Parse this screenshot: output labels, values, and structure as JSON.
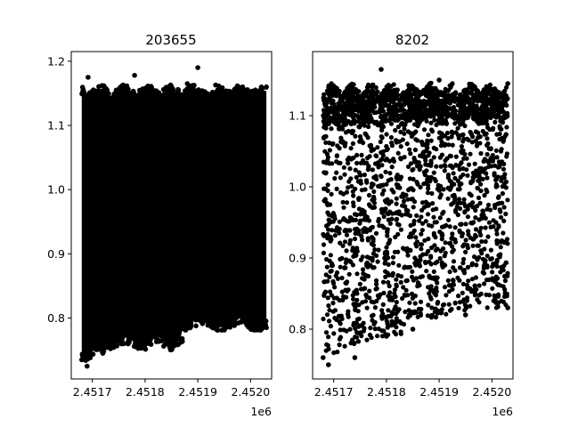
{
  "chart_data": [
    {
      "type": "scatter",
      "title": "203655",
      "xlabel": "",
      "ylabel": "",
      "x_offset_label": "1e6",
      "xlim": [
        2451660,
        2452040
      ],
      "ylim": [
        0.705,
        1.215
      ],
      "xticks": [
        2451700,
        2451800,
        2451900,
        2452000
      ],
      "xtick_labels": [
        "2.4517",
        "2.4518",
        "2.4519",
        "2.4520"
      ],
      "yticks": [
        0.8,
        0.9,
        1.0,
        1.1,
        1.2
      ],
      "ytick_labels": [
        "0.8",
        "0.9",
        "1.0",
        "1.1",
        "1.2"
      ],
      "marker_color": "#000000",
      "data_range": {
        "x": [
          2451680,
          2452030
        ],
        "y": [
          0.725,
          1.19
        ]
      },
      "points_sample": [
        {
          "x": 2451680,
          "y": 0.735
        },
        {
          "x": 2451690,
          "y": 0.725
        },
        {
          "x": 2451692,
          "y": 1.175
        },
        {
          "x": 2451720,
          "y": 0.745
        },
        {
          "x": 2451760,
          "y": 0.76
        },
        {
          "x": 2451780,
          "y": 1.178
        },
        {
          "x": 2451800,
          "y": 0.758
        },
        {
          "x": 2451880,
          "y": 1.165
        },
        {
          "x": 2451900,
          "y": 1.19
        },
        {
          "x": 2451880,
          "y": 0.785
        },
        {
          "x": 2451950,
          "y": 0.79
        },
        {
          "x": 2452030,
          "y": 0.785
        },
        {
          "x": 2452030,
          "y": 1.16
        }
      ]
    },
    {
      "type": "scatter",
      "title": "8202",
      "xlabel": "",
      "ylabel": "",
      "x_offset_label": "1e6",
      "xlim": [
        2451660,
        2452040
      ],
      "ylim": [
        0.73,
        1.19
      ],
      "xticks": [
        2451700,
        2451800,
        2451900,
        2452000
      ],
      "xtick_labels": [
        "2.4517",
        "2.4518",
        "2.4519",
        "2.4520"
      ],
      "yticks": [
        0.8,
        0.9,
        1.0,
        1.1
      ],
      "ytick_labels": [
        "0.8",
        "0.9",
        "1.0",
        "1.1"
      ],
      "marker_color": "#000000",
      "data_range": {
        "x": [
          2451680,
          2452030
        ],
        "y": [
          0.75,
          1.165
        ]
      },
      "points_sample": [
        {
          "x": 2451680,
          "y": 0.76
        },
        {
          "x": 2451690,
          "y": 0.75
        },
        {
          "x": 2451740,
          "y": 0.76
        },
        {
          "x": 2451790,
          "y": 1.165
        },
        {
          "x": 2451800,
          "y": 0.79
        },
        {
          "x": 2451850,
          "y": 0.8
        },
        {
          "x": 2451900,
          "y": 1.15
        },
        {
          "x": 2451950,
          "y": 0.82
        },
        {
          "x": 2452030,
          "y": 0.83
        },
        {
          "x": 2452030,
          "y": 1.145
        }
      ]
    }
  ]
}
